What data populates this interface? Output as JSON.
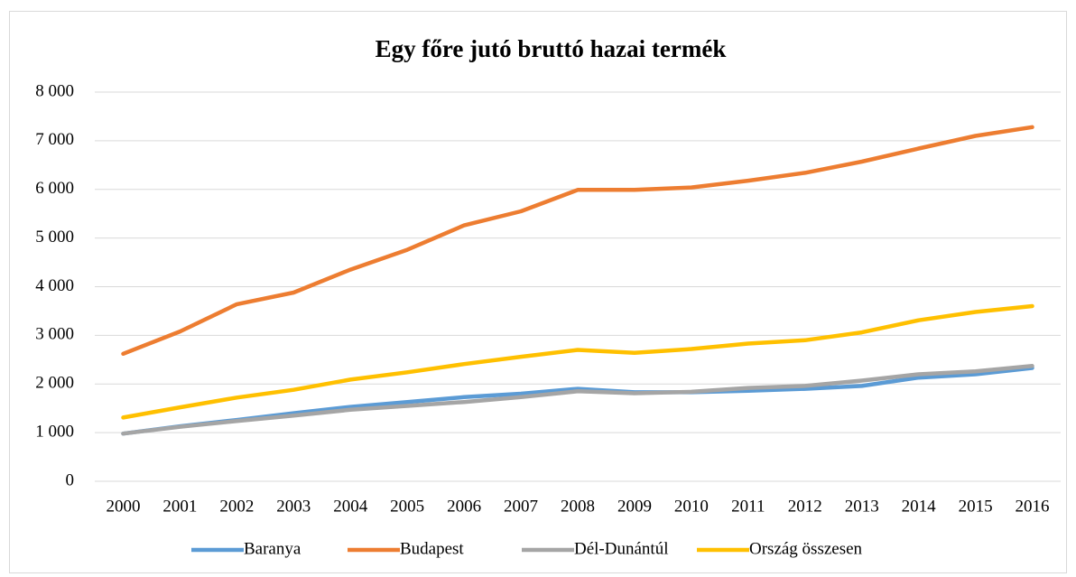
{
  "chart_data": {
    "type": "line",
    "title": "Egy főre jutó bruttó hazai termék",
    "categories": [
      "2000",
      "2001",
      "2002",
      "2003",
      "2004",
      "2005",
      "2006",
      "2007",
      "2008",
      "2009",
      "2010",
      "2011",
      "2012",
      "2013",
      "2014",
      "2015",
      "2016"
    ],
    "series": [
      {
        "name": "Baranya",
        "color": "#5b9bd5",
        "values": [
          980,
          1130,
          1260,
          1400,
          1530,
          1630,
          1730,
          1800,
          1900,
          1830,
          1830,
          1860,
          1900,
          1960,
          2130,
          2200,
          2330
        ]
      },
      {
        "name": "Budapest",
        "color": "#ed7d31",
        "values": [
          2620,
          3080,
          3640,
          3880,
          4350,
          4760,
          5260,
          5550,
          5990,
          5990,
          6040,
          6180,
          6340,
          6570,
          6840,
          7100,
          7280
        ]
      },
      {
        "name": "Dél-Dunántúl",
        "color": "#a5a5a5",
        "values": [
          980,
          1120,
          1240,
          1350,
          1470,
          1550,
          1630,
          1730,
          1850,
          1810,
          1840,
          1920,
          1960,
          2070,
          2200,
          2260,
          2370
        ]
      },
      {
        "name": "Ország összesen",
        "color": "#ffc000",
        "values": [
          1310,
          1520,
          1720,
          1880,
          2090,
          2240,
          2410,
          2560,
          2700,
          2640,
          2720,
          2830,
          2900,
          3060,
          3310,
          3480,
          3600
        ]
      }
    ],
    "ylim": [
      0,
      8000
    ],
    "yticks": [
      0,
      {
        "value": 1000,
        "label": "1 000"
      },
      {
        "value": 2000,
        "label": "2 000"
      },
      {
        "value": 3000,
        "label": "3 000"
      },
      {
        "value": 4000,
        "label": "4 000"
      },
      {
        "value": 5000,
        "label": "5 000"
      },
      {
        "value": 6000,
        "label": "6 000"
      },
      {
        "value": 7000,
        "label": "7 000"
      },
      {
        "value": 8000,
        "label": "8 000"
      }
    ],
    "grid": true,
    "legend": "bottom"
  }
}
